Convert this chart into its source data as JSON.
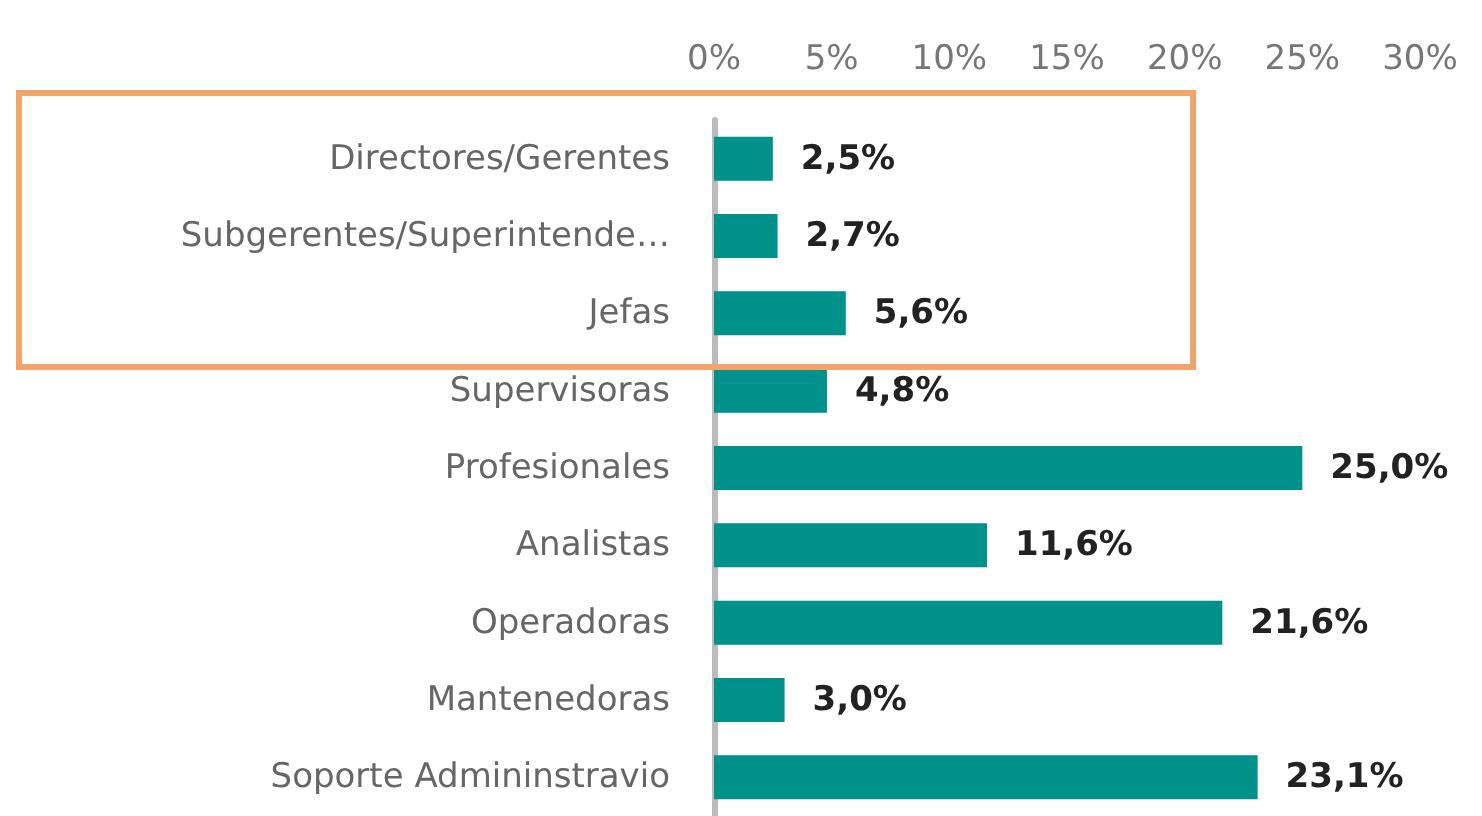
{
  "chart_data": {
    "type": "bar",
    "orientation": "horizontal",
    "categories": [
      "Directores/Gerentes",
      "Subgerentes/Superintende…",
      "Jefas",
      "Supervisoras",
      "Profesionales",
      "Analistas",
      "Operadoras",
      "Mantenedoras",
      "Soporte Admininstravio"
    ],
    "values": [
      2.5,
      2.7,
      5.6,
      4.8,
      25.0,
      11.6,
      21.6,
      3.0,
      23.1
    ],
    "value_labels": [
      "2,5%",
      "2,7%",
      "5,6%",
      "4,8%",
      "25,0%",
      "11,6%",
      "21,6%",
      "3,0%",
      "23,1%"
    ],
    "color": "#00918a",
    "xlim": [
      0,
      30
    ],
    "xticks": [
      {
        "value": 0,
        "label": "0%"
      },
      {
        "value": 5,
        "label": "5%"
      },
      {
        "value": 10,
        "label": "10%"
      },
      {
        "value": 15,
        "label": "15%"
      },
      {
        "value": 20,
        "label": "20%"
      },
      {
        "value": 25,
        "label": "25%"
      },
      {
        "value": 30,
        "label": "30%"
      }
    ],
    "grid": false
  }
}
